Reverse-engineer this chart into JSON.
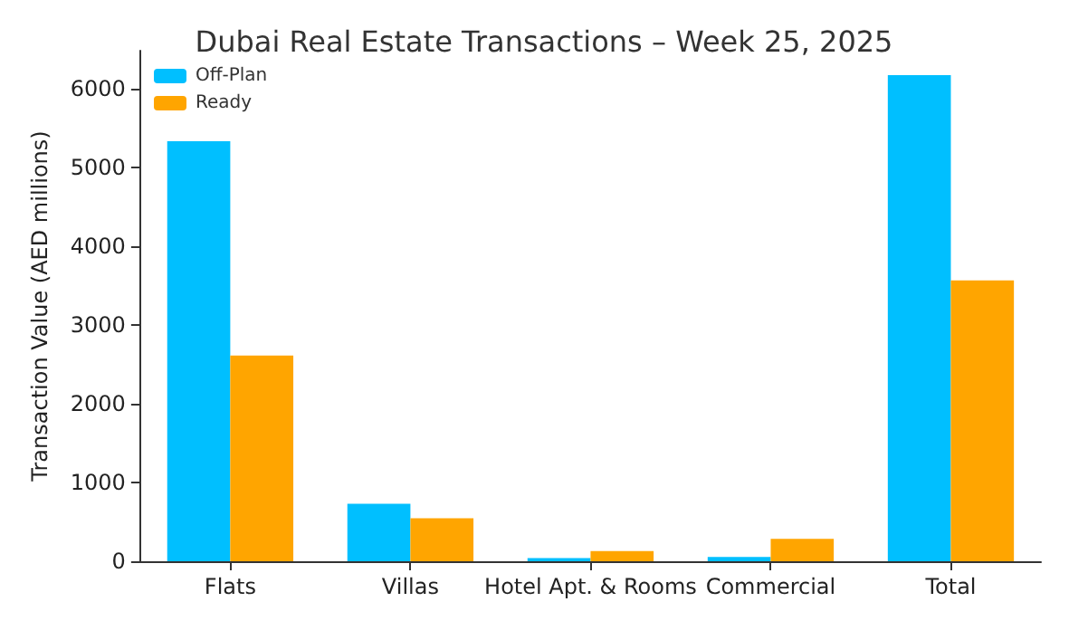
{
  "chart_data": {
    "type": "bar",
    "title": "Dubai Real Estate Transactions – Week 25, 2025",
    "ylabel": "Transaction Value (AED millions)",
    "categories": [
      "Flats",
      "Villas",
      "Hotel Apt. & Rooms",
      "Commercial",
      "Total"
    ],
    "series": [
      {
        "name": "Off-Plan",
        "color": "#00bfff",
        "values": [
          5330,
          730,
          40,
          55,
          6170
        ]
      },
      {
        "name": "Ready",
        "color": "#ffa500",
        "values": [
          2610,
          545,
          130,
          285,
          3565
        ]
      }
    ],
    "ylim": [
      0,
      6480
    ],
    "yticks": [
      0,
      1000,
      2000,
      3000,
      4000,
      5000,
      6000
    ],
    "grid": false,
    "legend": "top left"
  }
}
